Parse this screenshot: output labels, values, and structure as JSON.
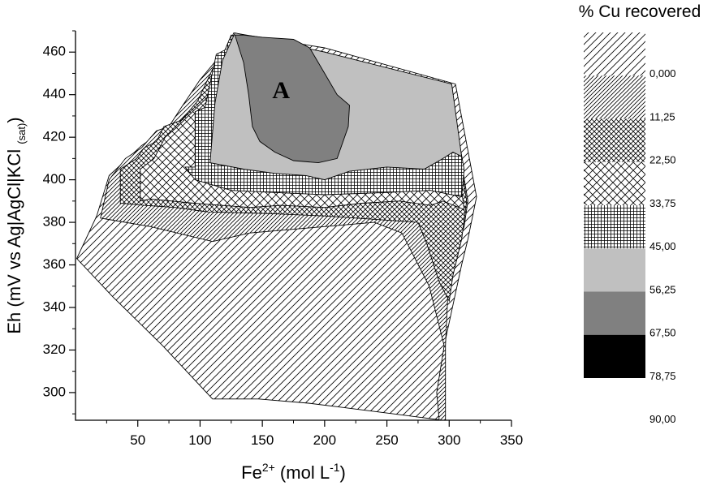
{
  "chart_data": {
    "type": "contour",
    "xlabel": "Fe²⁺ (mol L⁻¹)",
    "xlabel_parts": {
      "base": "Fe",
      "sup1": "2+",
      "mid": " (mol L",
      "sup2": "-1",
      "end": ")"
    },
    "ylabel": "Eh (mV vs Ag|AgCl|KCl (sat))",
    "ylabel_parts": {
      "main": "Eh (mV vs Ag|AgCl|KCl",
      "sub": "(sat)",
      "end": ")"
    },
    "xlim": [
      0,
      350
    ],
    "ylim": [
      287,
      470
    ],
    "xticks": [
      50,
      100,
      150,
      200,
      250,
      300,
      350
    ],
    "yticks": [
      300,
      320,
      340,
      360,
      380,
      400,
      420,
      440,
      460
    ],
    "legend_title": "% Cu recovered",
    "legend_position": "right",
    "levels": [
      "0,000",
      "11,25",
      "22,50",
      "33,75",
      "45,00",
      "56,25",
      "67,50",
      "78,75",
      "90,00"
    ],
    "bands": [
      {
        "range": [
          "0,000",
          "11,25"
        ],
        "pattern": "sparse-diagonal"
      },
      {
        "range": [
          "11,25",
          "22,50"
        ],
        "pattern": "dense-diagonal"
      },
      {
        "range": [
          "22,50",
          "33,75"
        ],
        "pattern": "dense-crosshatch"
      },
      {
        "range": [
          "33,75",
          "45,00"
        ],
        "pattern": "sparse-crosshatch"
      },
      {
        "range": [
          "45,00",
          "56,25"
        ],
        "pattern": "grid"
      },
      {
        "range": [
          "56,25",
          "67,50"
        ],
        "color": "#c0c0c0"
      },
      {
        "range": [
          "67,50",
          "78,75"
        ],
        "color": "#808080"
      },
      {
        "range": [
          "78,75",
          "90,00"
        ],
        "color": "#000000"
      }
    ],
    "regions": [
      {
        "band": 0,
        "points": [
          [
            1,
            363
          ],
          [
            17,
            383
          ],
          [
            27,
            402
          ],
          [
            53,
            416
          ],
          [
            70,
            423
          ],
          [
            80,
            427
          ],
          [
            112,
            450
          ],
          [
            127,
            469
          ],
          [
            200,
            462
          ],
          [
            305,
            445
          ],
          [
            322,
            392
          ],
          [
            315,
            372
          ],
          [
            310,
            360
          ],
          [
            296,
            322
          ],
          [
            295,
            287
          ],
          [
            255,
            290
          ],
          [
            215,
            293
          ],
          [
            187,
            295
          ],
          [
            147,
            297
          ],
          [
            110,
            297
          ],
          [
            70,
            322
          ],
          [
            30,
            345
          ],
          [
            1,
            363
          ]
        ]
      },
      {
        "band": 1,
        "points": [
          [
            20,
            382
          ],
          [
            27,
            400
          ],
          [
            40,
            410
          ],
          [
            53,
            415
          ],
          [
            65,
            423
          ],
          [
            75,
            425
          ],
          [
            85,
            434
          ],
          [
            100,
            447
          ],
          [
            120,
            461
          ],
          [
            200,
            460
          ],
          [
            300,
            444
          ],
          [
            315,
            390
          ],
          [
            312,
            378
          ],
          [
            300,
            360
          ],
          [
            297,
            322
          ],
          [
            297,
            287
          ],
          [
            292,
            287
          ],
          [
            290,
            300
          ],
          [
            296,
            322
          ],
          [
            284,
            350
          ],
          [
            262,
            375
          ],
          [
            240,
            380
          ],
          [
            200,
            378
          ],
          [
            140,
            375
          ],
          [
            110,
            371
          ],
          [
            60,
            378
          ],
          [
            20,
            382
          ]
        ]
      },
      {
        "band": 2,
        "points": [
          [
            36,
            389
          ],
          [
            36,
            405
          ],
          [
            49,
            410
          ],
          [
            55,
            415
          ],
          [
            65,
            418
          ],
          [
            71,
            425
          ],
          [
            85,
            428
          ],
          [
            98,
            437
          ],
          [
            110,
            452
          ],
          [
            120,
            461
          ],
          [
            200,
            458
          ],
          [
            300,
            443
          ],
          [
            314,
            390
          ],
          [
            310,
            372
          ],
          [
            303,
            355
          ],
          [
            300,
            343
          ],
          [
            292,
            352
          ],
          [
            282,
            370
          ],
          [
            275,
            380
          ],
          [
            250,
            381
          ],
          [
            200,
            383
          ],
          [
            160,
            384
          ],
          [
            105,
            385
          ],
          [
            80,
            387
          ],
          [
            55,
            388
          ],
          [
            36,
            389
          ]
        ]
      },
      {
        "band": 3,
        "points": [
          [
            52,
            390
          ],
          [
            52,
            405
          ],
          [
            63,
            410
          ],
          [
            72,
            420
          ],
          [
            82,
            425
          ],
          [
            94,
            432
          ],
          [
            108,
            440
          ],
          [
            117,
            455
          ],
          [
            125,
            468
          ],
          [
            200,
            460
          ],
          [
            300,
            443
          ],
          [
            310,
            395
          ],
          [
            312,
            386
          ],
          [
            295,
            390
          ],
          [
            285,
            388
          ],
          [
            260,
            390
          ],
          [
            230,
            389
          ],
          [
            200,
            387
          ],
          [
            165,
            388
          ],
          [
            140,
            387
          ],
          [
            95,
            389
          ],
          [
            60,
            391
          ],
          [
            52,
            390
          ]
        ]
      },
      {
        "band": 4,
        "points": [
          [
            88,
            406
          ],
          [
            96,
            406
          ],
          [
            96,
            432
          ],
          [
            104,
            434
          ],
          [
            108,
            445
          ],
          [
            113,
            459
          ],
          [
            120,
            461
          ],
          [
            125,
            468
          ],
          [
            200,
            460
          ],
          [
            300,
            443
          ],
          [
            312,
            405
          ],
          [
            310,
            392
          ],
          [
            285,
            395
          ],
          [
            250,
            394
          ],
          [
            200,
            393
          ],
          [
            160,
            394
          ],
          [
            125,
            395
          ],
          [
            96,
            400
          ],
          [
            88,
            406
          ]
        ]
      },
      {
        "band": 5,
        "points": [
          [
            108,
            408
          ],
          [
            112,
            436
          ],
          [
            118,
            456
          ],
          [
            128,
            469
          ],
          [
            200,
            460
          ],
          [
            302,
            445
          ],
          [
            310,
            411
          ],
          [
            303,
            413
          ],
          [
            295,
            410
          ],
          [
            280,
            405
          ],
          [
            250,
            406
          ],
          [
            220,
            404
          ],
          [
            200,
            400
          ],
          [
            185,
            402
          ],
          [
            160,
            403
          ],
          [
            135,
            405
          ],
          [
            108,
            408
          ]
        ]
      },
      {
        "band": 6,
        "points": [
          [
            128,
            468
          ],
          [
            135,
            468
          ],
          [
            150,
            467
          ],
          [
            175,
            466
          ],
          [
            188,
            462
          ],
          [
            200,
            450
          ],
          [
            210,
            440
          ],
          [
            220,
            435
          ],
          [
            219,
            425
          ],
          [
            210,
            410
          ],
          [
            195,
            408
          ],
          [
            175,
            409
          ],
          [
            160,
            413
          ],
          [
            148,
            418
          ],
          [
            142,
            425
          ],
          [
            139,
            440
          ],
          [
            135,
            455
          ],
          [
            128,
            468
          ]
        ]
      }
    ],
    "annotations": [
      {
        "text": "A",
        "x": 165,
        "y": 441
      }
    ]
  }
}
